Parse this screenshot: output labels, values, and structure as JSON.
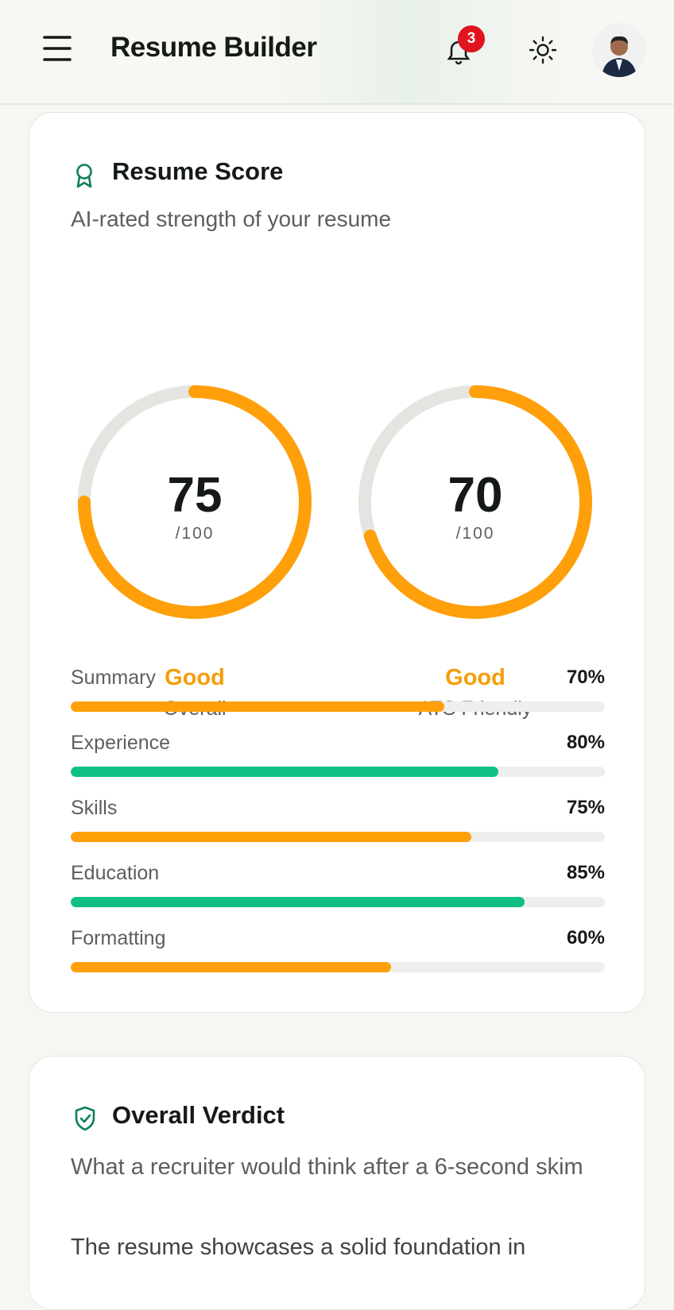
{
  "header": {
    "title": "Resume Builder",
    "notification_count": 3
  },
  "score_card": {
    "title": "Resume Score",
    "subtitle": "AI-rated strength of your resume",
    "gauges": [
      {
        "score": 75,
        "out_of": {
          "value": 100,
          "label": "/100"
        },
        "rating": "Good",
        "label": "Overall",
        "color": "#ff9f0a"
      },
      {
        "score": 70,
        "out_of": {
          "value": 100,
          "label": "/100"
        },
        "rating": "Good",
        "label": "ATS Friendly",
        "color": "#ff9f0a"
      }
    ],
    "sections": [
      {
        "name": "Summary",
        "value": 70,
        "value_label": "70%",
        "color": "#ff9f0a"
      },
      {
        "name": "Experience",
        "value": 80,
        "value_label": "80%",
        "color": "#10bf84"
      },
      {
        "name": "Skills",
        "value": 75,
        "value_label": "75%",
        "color": "#ff9f0a"
      },
      {
        "name": "Education",
        "value": 85,
        "value_label": "85%",
        "color": "#10bf84"
      },
      {
        "name": "Formatting",
        "value": 60,
        "value_label": "60%",
        "color": "#ff9f0a"
      }
    ]
  },
  "verdict_card": {
    "title": "Overall Verdict",
    "subtitle": "What a recruiter would think after a 6-second skim",
    "body": "The resume showcases a solid foundation in"
  }
}
